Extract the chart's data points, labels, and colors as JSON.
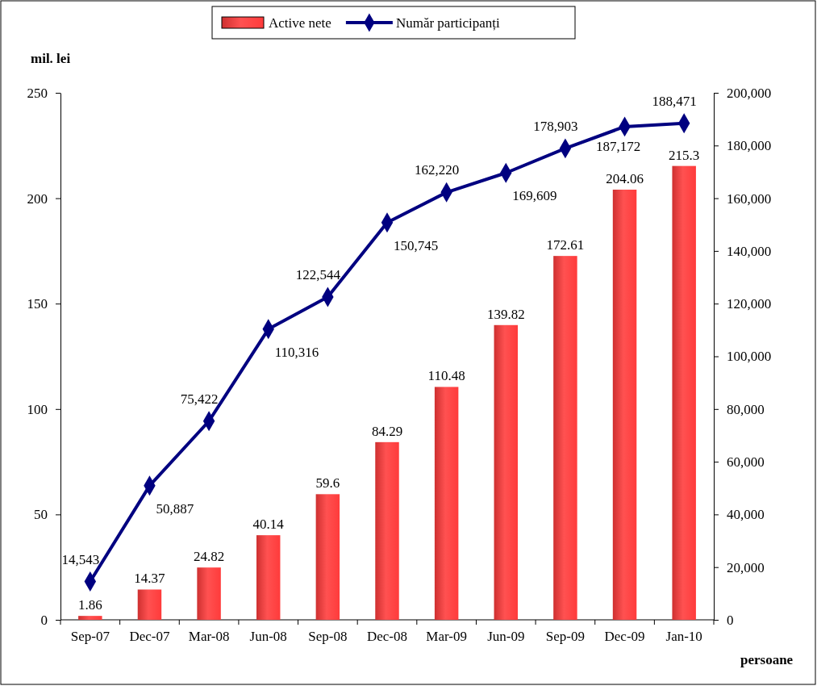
{
  "chart_data": {
    "type": "bar",
    "categories": [
      "Sep-07",
      "Dec-07",
      "Mar-08",
      "Jun-08",
      "Sep-08",
      "Dec-08",
      "Mar-09",
      "Jun-09",
      "Sep-09",
      "Dec-09",
      "Jan-10"
    ],
    "series": [
      {
        "name": "Active nete",
        "color": "#ff3b3b",
        "values": [
          1.86,
          14.37,
          24.82,
          40.14,
          59.6,
          84.29,
          110.48,
          139.82,
          172.61,
          204.06,
          215.3
        ],
        "value_labels": [
          "1.86",
          "14.37",
          "24.82",
          "40.14",
          "59.6",
          "84.29",
          "110.48",
          "139.82",
          "172.61",
          "204.06",
          "215.3"
        ]
      },
      {
        "name": "Număr participanți",
        "type": "line",
        "axis": "y2",
        "color": "#000080",
        "marker": "diamond",
        "values": [
          14543,
          50887,
          75422,
          110316,
          122544,
          150745,
          162220,
          169609,
          178903,
          187172,
          188471
        ],
        "value_labels": [
          "14,543",
          "50,887",
          "75,422",
          "110,316",
          "122,544",
          "150,745",
          "162,220",
          "169,609",
          "178,903",
          "187,172",
          "188,471"
        ]
      }
    ],
    "ylabel": "mil. lei",
    "y2label": "persoane",
    "ylim": [
      0,
      250
    ],
    "yticks": [
      0,
      50,
      100,
      150,
      200,
      250
    ],
    "y2lim": [
      0,
      200000
    ],
    "y2ticks": [
      0,
      {
        "value": 20000,
        "label": "20,000"
      },
      {
        "value": 40000,
        "label": "40,000"
      },
      {
        "value": 60000,
        "label": "60,000"
      },
      {
        "value": 80000,
        "label": "80,000"
      },
      {
        "value": 100000,
        "label": "100,000"
      },
      {
        "value": 120000,
        "label": "120,000"
      },
      {
        "value": 140000,
        "label": "140,000"
      },
      {
        "value": 160000,
        "label": "160,000"
      },
      {
        "value": 180000,
        "label": "180,000"
      },
      {
        "value": 200000,
        "label": "200,000"
      }
    ],
    "legend": "top",
    "grid": false
  }
}
